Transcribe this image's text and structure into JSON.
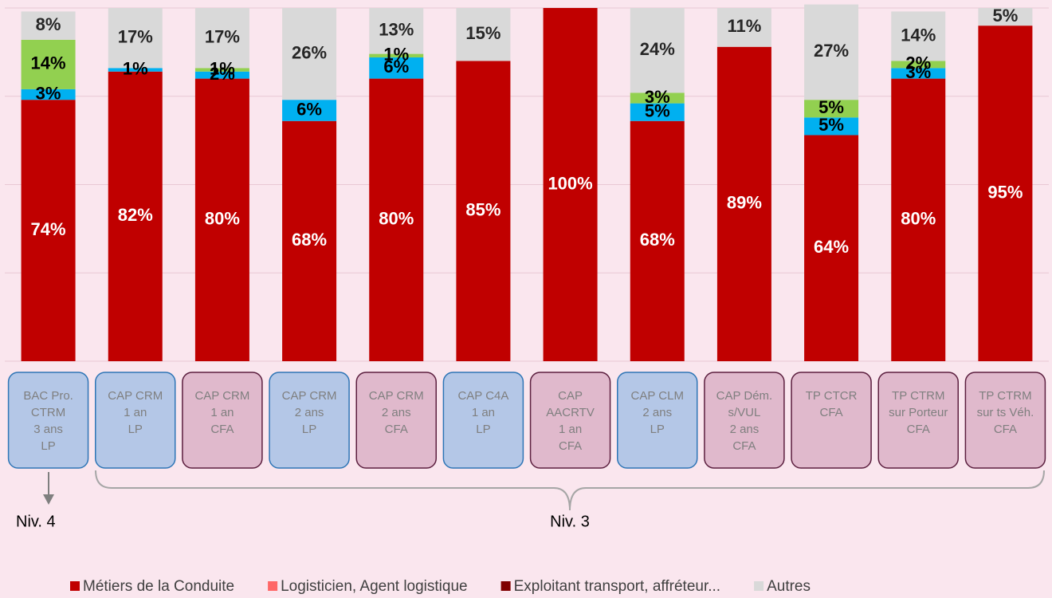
{
  "chart_data": {
    "type": "stacked_bar",
    "categories": [
      [
        "BAC Pro.",
        "CTRM",
        "3 ans",
        "LP"
      ],
      [
        "CAP CRM",
        "1 an",
        "LP"
      ],
      [
        "CAP CRM",
        "1 an",
        "CFA"
      ],
      [
        "CAP CRM",
        "2 ans",
        "LP"
      ],
      [
        "CAP CRM",
        "2 ans",
        "CFA"
      ],
      [
        "CAP C4A",
        "1 an",
        "LP"
      ],
      [
        "CAP",
        "AACRTV",
        "1 an",
        "CFA"
      ],
      [
        "CAP CLM",
        "2 ans",
        "LP"
      ],
      [
        "CAP Dém.",
        "s/VUL",
        "2 ans",
        "CFA"
      ],
      [
        "TP CTCR",
        "CFA"
      ],
      [
        "TP CTRM",
        "sur Porteur",
        "CFA"
      ],
      [
        "TP CTRM",
        "sur ts Véh.",
        "CFA"
      ]
    ],
    "box_colors": [
      "#b4c7e7",
      "#b4c7e7",
      "#e0b9cc",
      "#b4c7e7",
      "#e0b9cc",
      "#b4c7e7",
      "#e0b9cc",
      "#b4c7e7",
      "#e0b9cc",
      "#e0b9cc",
      "#e0b9cc",
      "#e0b9cc"
    ],
    "box_borders": [
      "#2e75b6",
      "#2e75b6",
      "#5c1f3f",
      "#2e75b6",
      "#5c1f3f",
      "#2e75b6",
      "#5c1f3f",
      "#2e75b6",
      "#5c1f3f",
      "#5c1f3f",
      "#5c1f3f",
      "#5c1f3f"
    ],
    "series": [
      {
        "name": "Métiers de la Conduite",
        "color": "#c00000",
        "legend_color": "#c00000",
        "label_color": "#ffffff",
        "values": [
          74,
          82,
          80,
          68,
          80,
          85,
          100,
          68,
          89,
          64,
          80,
          95
        ],
        "value_labels": [
          "74%",
          "82%",
          "80%",
          "68%",
          "80%",
          "85%",
          "100%",
          "68%",
          "89%",
          "64%",
          "80%",
          "95%"
        ]
      },
      {
        "name": "Logisticien, Agent logistique",
        "color": "#00b0f0",
        "legend_color": "#ff6666",
        "label_color": "#000000",
        "values": [
          3,
          1,
          2,
          6,
          6,
          null,
          null,
          5,
          null,
          5,
          3,
          null
        ],
        "value_labels": [
          "3%",
          "1%",
          "2%",
          "6%",
          "6%",
          null,
          null,
          "5%",
          null,
          "5%",
          "3%",
          null
        ]
      },
      {
        "name": "Exploitant transport, affréteur...",
        "color": "#92d050",
        "legend_color": "#7f0000",
        "label_color": "#000000",
        "values": [
          14,
          null,
          1,
          null,
          1,
          null,
          null,
          3,
          null,
          5,
          2,
          null
        ],
        "value_labels": [
          "14%",
          null,
          "1%",
          null,
          "1%",
          null,
          null,
          "3%",
          null,
          "5%",
          "2%",
          null
        ]
      },
      {
        "name": "Autres",
        "color": "#d9d9d9",
        "legend_color": "#d9d9d9",
        "label_color": "#262626",
        "values": [
          8,
          17,
          17,
          26,
          13,
          15,
          null,
          24,
          11,
          27,
          14,
          5
        ],
        "value_labels": [
          "8%",
          "17%",
          "17%",
          "26%",
          "13%",
          "15%",
          null,
          "24%",
          "11%",
          "27%",
          "14%",
          "5%"
        ]
      }
    ],
    "ylim": [
      0,
      100
    ],
    "yticks": [
      0,
      25,
      50,
      75,
      100
    ],
    "grid": true,
    "annotations": {
      "level4": "Niv. 4",
      "level3": "Niv. 3"
    }
  }
}
